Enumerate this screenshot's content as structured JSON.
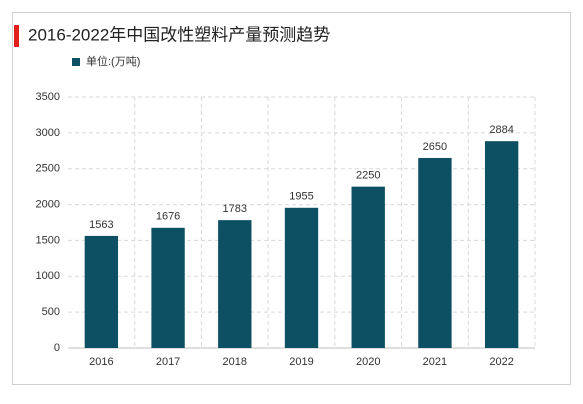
{
  "chart_data": {
    "type": "bar",
    "title": "2016-2022年中国改性塑料产量预测趋势",
    "categories": [
      "2016",
      "2017",
      "2018",
      "2019",
      "2020",
      "2021",
      "2022"
    ],
    "series": [
      {
        "name": "单位:(万吨)",
        "color": "#0d4f63",
        "values": [
          1563,
          1676,
          1783,
          1955,
          2250,
          2650,
          2884
        ]
      }
    ],
    "ylim": [
      0,
      3500
    ],
    "yticks": [
      0,
      500,
      1000,
      1500,
      2000,
      2500,
      3000,
      3500
    ],
    "grid": true
  }
}
